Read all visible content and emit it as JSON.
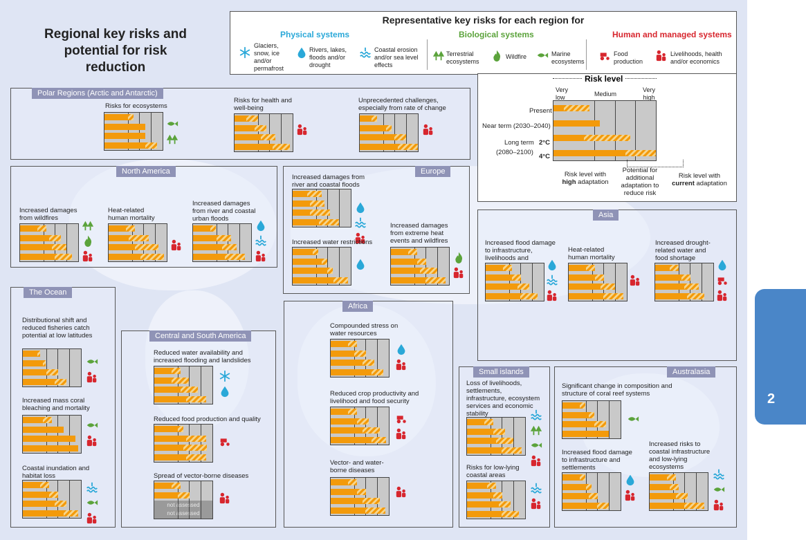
{
  "title_line1": "Regional key risks and",
  "title_line2": "potential for risk reduction",
  "chapter_tab": "2",
  "colors": {
    "orange": "#f39a0b",
    "physical": "#2aa8d8",
    "biological": "#5ba33b",
    "human": "#d7262e"
  },
  "legend": {
    "heading": "Representative key risks for each region for",
    "physical": "Physical systems",
    "biological": "Biological systems",
    "human": "Human and managed systems",
    "glaciers": "Glaciers, snow, ice and/or permafrost",
    "rivers": "Rivers, lakes, floods and/or drought",
    "coastal": "Coastal erosion and/or sea level effects",
    "terrestrial": "Terrestrial ecosystems",
    "wildfire": "Wildfire",
    "marine": "Marine ecosystems",
    "food": "Food production",
    "livelihoods": "Livelihoods, health and/or economics"
  },
  "risk_legend": {
    "title": "Risk level",
    "very_low": "Very low",
    "medium": "Medium",
    "very_high": "Very high",
    "present": "Present",
    "near_term": "Near term (2030–2040)",
    "long_term_1": "Long term",
    "long_term_2": "(2080–2100)",
    "two_c": "2°C",
    "four_c": "4°C",
    "high_adapt_1": "Risk level with",
    "high_adapt_2": "high",
    "high_adapt_3": "adaptation",
    "potential": "Potential for additional adaptation to reduce risk",
    "current_adapt_1": "Risk level with",
    "current_adapt_2": "current",
    "current_adapt_3": "adaptation"
  },
  "regions": {
    "polar": {
      "name": "Polar Regions (Arctic and Antarctic)",
      "r1": "Risks for ecosystems",
      "r2": "Risks for health and well-being",
      "r3": "Unprecedented challenges, especially from rate of change"
    },
    "na": {
      "name": "North America",
      "r1": "Increased damages from wildfires",
      "r2": "Heat-related human mortality",
      "r3": "Increased damages from river and coastal urban floods"
    },
    "europe": {
      "name": "Europe",
      "r1": "Increased damages from river and coastal floods",
      "r2": "Increased water restrictions",
      "r3": "Increased damages from extreme heat events and wildfires"
    },
    "asia": {
      "name": "Asia",
      "r1": "Increased flood damage to infrastructure, livelihoods and settlements",
      "r2": "Heat-related human mortality",
      "r3": "Increased drought-related water and food shortage"
    },
    "ocean": {
      "name": "The Ocean",
      "r1": "Distributional shift and reduced fisheries catch potential at low latitudes",
      "r2": "Increased mass coral bleaching and mortality",
      "r3": "Coastal inundation and habitat loss"
    },
    "csa": {
      "name": "Central and South America",
      "r1": "Reduced water availability and increased flooding and landslides",
      "r2": "Reduced food production and quality",
      "r3": "Spread of vector-borne diseases",
      "not_assessed": "not assessed"
    },
    "africa": {
      "name": "Africa",
      "r1": "Compounded stress on water resources",
      "r2": "Reduced crop productivity and livelihood and food security",
      "r3": "Vector- and water-borne diseases"
    },
    "islands": {
      "name": "Small islands",
      "r1": "Loss of livelihoods, settlements, infrastructure, ecosystem services and economic stability",
      "r2": "Risks for low-lying coastal areas"
    },
    "aus": {
      "name": "Australasia",
      "r1": "Significant change in composition and structure of coral reef systems",
      "r2": "Increased flood damage to infrastructure and settlements",
      "r3": "Increased risks to coastal infrastructure and low-lying ecosystems"
    }
  },
  "chart_data": [
    {
      "id": "legend",
      "type": "risk-bars",
      "rows": [
        {
          "label": "Present",
          "s": 0.05,
          "c": 0.1,
          "cur": 0.35
        },
        {
          "label": "Near term (2030–2040)",
          "s": 0.05,
          "c": 0.45,
          "cur": 0.45
        },
        {
          "label": "2°C",
          "s": 0.05,
          "c": 0.3,
          "cur": 0.75
        },
        {
          "label": "4°C",
          "s": 0.7,
          "c": 0.7,
          "cur": 1.0
        }
      ]
    },
    {
      "id": "polar-1",
      "rows": [
        [
          0.05,
          0.4,
          0.5
        ],
        [
          0.05,
          0.7,
          0.7
        ],
        [
          0.05,
          0.7,
          0.7
        ],
        [
          0.05,
          0.7,
          0.9
        ]
      ]
    },
    {
      "id": "polar-2",
      "rows": [
        [
          0.05,
          0.2,
          0.4
        ],
        [
          0.05,
          0.35,
          0.55
        ],
        [
          0.05,
          0.45,
          0.7
        ],
        [
          0.05,
          0.65,
          0.95
        ]
      ]
    },
    {
      "id": "polar-3",
      "rows": [
        [
          0.05,
          0.2,
          0.3
        ],
        [
          0.05,
          0.45,
          0.55
        ],
        [
          0.05,
          0.6,
          0.8
        ],
        [
          0.05,
          0.65,
          1.0
        ]
      ]
    },
    {
      "id": "na-1",
      "rows": [
        [
          0.05,
          0.3,
          0.45
        ],
        [
          0.05,
          0.5,
          0.7
        ],
        [
          0.05,
          0.55,
          0.8
        ],
        [
          0.05,
          0.6,
          0.9
        ]
      ]
    },
    {
      "id": "na-2",
      "rows": [
        [
          0.05,
          0.3,
          0.45
        ],
        [
          0.05,
          0.35,
          0.7
        ],
        [
          0.05,
          0.45,
          0.85
        ],
        [
          0.05,
          0.55,
          0.95
        ]
      ]
    },
    {
      "id": "na-3",
      "rows": [
        [
          0.05,
          0.3,
          0.4
        ],
        [
          0.05,
          0.4,
          0.65
        ],
        [
          0.05,
          0.5,
          0.75
        ],
        [
          0.05,
          0.55,
          0.9
        ]
      ]
    },
    {
      "id": "eu-1",
      "rows": [
        [
          0.05,
          0.25,
          0.5
        ],
        [
          0.05,
          0.3,
          0.55
        ],
        [
          0.05,
          0.3,
          0.65
        ],
        [
          0.05,
          0.45,
          0.8
        ]
      ]
    },
    {
      "id": "eu-2",
      "rows": [
        [
          0.05,
          0.35,
          0.45
        ],
        [
          0.05,
          0.5,
          0.6
        ],
        [
          0.05,
          0.6,
          0.7
        ],
        [
          0.05,
          0.7,
          0.95
        ]
      ]
    },
    {
      "id": "eu-3",
      "rows": [
        [
          0.05,
          0.3,
          0.45
        ],
        [
          0.05,
          0.45,
          0.6
        ],
        [
          0.05,
          0.5,
          0.8
        ],
        [
          0.05,
          0.6,
          0.95
        ]
      ]
    },
    {
      "id": "asia-1",
      "rows": [
        [
          0.05,
          0.3,
          0.45
        ],
        [
          0.05,
          0.45,
          0.6
        ],
        [
          0.05,
          0.55,
          0.75
        ],
        [
          0.05,
          0.6,
          0.9
        ]
      ]
    },
    {
      "id": "asia-2",
      "rows": [
        [
          0.05,
          0.3,
          0.45
        ],
        [
          0.05,
          0.45,
          0.6
        ],
        [
          0.05,
          0.55,
          0.8
        ],
        [
          0.05,
          0.6,
          0.95
        ]
      ]
    },
    {
      "id": "asia-3",
      "rows": [
        [
          0.05,
          0.25,
          0.4
        ],
        [
          0.05,
          0.45,
          0.6
        ],
        [
          0.05,
          0.5,
          0.75
        ],
        [
          0.05,
          0.55,
          0.85
        ]
      ]
    },
    {
      "id": "ocean-1",
      "rows": [
        [
          0.05,
          0.25,
          0.3
        ],
        [
          0.05,
          0.35,
          0.4
        ],
        [
          0.05,
          0.4,
          0.6
        ],
        [
          0.05,
          0.55,
          0.75
        ]
      ]
    },
    {
      "id": "ocean-2",
      "rows": [
        [
          0.05,
          0.35,
          0.5
        ],
        [
          0.05,
          0.7,
          0.7
        ],
        [
          0.05,
          0.9,
          0.9
        ],
        [
          0.05,
          0.95,
          0.95
        ]
      ]
    },
    {
      "id": "ocean-3",
      "rows": [
        [
          0.05,
          0.3,
          0.45
        ],
        [
          0.05,
          0.45,
          0.6
        ],
        [
          0.05,
          0.55,
          0.75
        ],
        [
          0.05,
          0.7,
          0.95
        ]
      ]
    },
    {
      "id": "csa-1",
      "rows": [
        [
          0.05,
          0.3,
          0.45
        ],
        [
          0.05,
          0.3,
          0.6
        ],
        [
          0.05,
          0.45,
          0.75
        ],
        [
          0.05,
          0.55,
          0.9
        ]
      ]
    },
    {
      "id": "csa-2",
      "rows": [
        [
          0.05,
          0.4,
          0.5
        ],
        [
          0.05,
          0.55,
          0.9
        ],
        [
          0.05,
          0.5,
          0.9
        ],
        [
          0.05,
          0.55,
          0.9
        ]
      ]
    },
    {
      "id": "csa-3",
      "rows": [
        [
          0.05,
          0.3,
          0.45
        ],
        [
          0.05,
          0.4,
          0.6
        ],
        [
          0,
          0,
          0
        ],
        [
          0,
          0,
          0
        ]
      ]
    },
    {
      "id": "af-1",
      "rows": [
        [
          0.05,
          0.3,
          0.45
        ],
        [
          0.05,
          0.4,
          0.6
        ],
        [
          0.05,
          0.55,
          0.75
        ],
        [
          0.05,
          0.7,
          0.9
        ]
      ]
    },
    {
      "id": "af-2",
      "rows": [
        [
          0.05,
          0.3,
          0.45
        ],
        [
          0.05,
          0.45,
          0.65
        ],
        [
          0.05,
          0.55,
          0.85
        ],
        [
          0.05,
          0.7,
          0.95
        ]
      ]
    },
    {
      "id": "af-3",
      "rows": [
        [
          0.05,
          0.3,
          0.45
        ],
        [
          0.05,
          0.45,
          0.6
        ],
        [
          0.05,
          0.55,
          0.85
        ],
        [
          0.05,
          0.6,
          0.95
        ]
      ]
    },
    {
      "id": "si-1",
      "rows": [
        [
          0.05,
          0.3,
          0.45
        ],
        [
          0.05,
          0.45,
          0.65
        ],
        [
          0.05,
          0.5,
          0.8
        ],
        [
          0.05,
          0.6,
          0.95
        ]
      ]
    },
    {
      "id": "si-2",
      "rows": [
        [
          0.05,
          0.35,
          0.5
        ],
        [
          0.05,
          0.45,
          0.6
        ],
        [
          0.05,
          0.55,
          0.75
        ],
        [
          0.05,
          0.6,
          0.9
        ]
      ]
    },
    {
      "id": "aus-1",
      "rows": [
        [
          0.05,
          0.3,
          0.4
        ],
        [
          0.05,
          0.45,
          0.55
        ],
        [
          0.05,
          0.55,
          0.75
        ],
        [
          0.05,
          0.8,
          0.8
        ]
      ]
    },
    {
      "id": "aus-2",
      "rows": [
        [
          0.05,
          0.3,
          0.4
        ],
        [
          0.05,
          0.4,
          0.5
        ],
        [
          0.05,
          0.45,
          0.6
        ],
        [
          0.05,
          0.6,
          0.8
        ]
      ]
    },
    {
      "id": "aus-3",
      "rows": [
        [
          0.05,
          0.3,
          0.45
        ],
        [
          0.05,
          0.35,
          0.5
        ],
        [
          0.05,
          0.45,
          0.65
        ],
        [
          0.05,
          0.6,
          0.95
        ]
      ]
    }
  ]
}
